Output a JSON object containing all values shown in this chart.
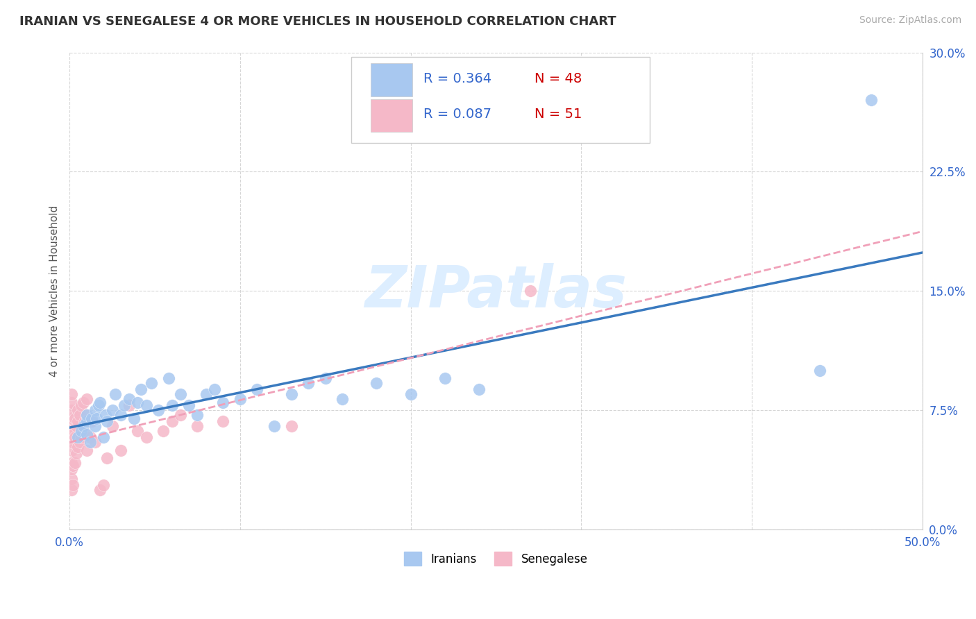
{
  "title": "IRANIAN VS SENEGALESE 4 OR MORE VEHICLES IN HOUSEHOLD CORRELATION CHART",
  "source": "Source: ZipAtlas.com",
  "ylabel": "4 or more Vehicles in Household",
  "xlim": [
    0.0,
    0.5
  ],
  "ylim": [
    0.0,
    0.3
  ],
  "xticks": [
    0.0,
    0.1,
    0.2,
    0.3,
    0.4,
    0.5
  ],
  "yticks": [
    0.0,
    0.075,
    0.15,
    0.225,
    0.3
  ],
  "xticklabels": [
    "0.0%",
    "",
    "",
    "",
    "",
    "50.0%"
  ],
  "yticklabels_right": [
    "0.0%",
    "7.5%",
    "15.0%",
    "22.5%",
    "30.0%"
  ],
  "iranians_R": 0.364,
  "iranians_N": 48,
  "senegalese_R": 0.087,
  "senegalese_N": 51,
  "iranian_color": "#a8c8f0",
  "senegalese_color": "#f5b8c8",
  "iranian_line_color": "#3a7abf",
  "senegalese_line_color": "#f0a0b8",
  "watermark_color": "#ddeeff",
  "iranians_x": [
    0.005,
    0.007,
    0.008,
    0.01,
    0.01,
    0.01,
    0.012,
    0.013,
    0.015,
    0.015,
    0.016,
    0.017,
    0.018,
    0.02,
    0.021,
    0.022,
    0.025,
    0.027,
    0.03,
    0.032,
    0.035,
    0.038,
    0.04,
    0.042,
    0.045,
    0.048,
    0.052,
    0.058,
    0.06,
    0.065,
    0.07,
    0.075,
    0.08,
    0.085,
    0.09,
    0.1,
    0.11,
    0.12,
    0.13,
    0.14,
    0.15,
    0.16,
    0.18,
    0.2,
    0.22,
    0.24,
    0.44,
    0.47
  ],
  "iranians_y": [
    0.058,
    0.062,
    0.065,
    0.06,
    0.068,
    0.072,
    0.055,
    0.07,
    0.065,
    0.075,
    0.07,
    0.078,
    0.08,
    0.058,
    0.072,
    0.068,
    0.075,
    0.085,
    0.072,
    0.078,
    0.082,
    0.07,
    0.08,
    0.088,
    0.078,
    0.092,
    0.075,
    0.095,
    0.078,
    0.085,
    0.078,
    0.072,
    0.085,
    0.088,
    0.08,
    0.082,
    0.088,
    0.065,
    0.085,
    0.092,
    0.095,
    0.082,
    0.092,
    0.085,
    0.095,
    0.088,
    0.1,
    0.27
  ],
  "senegalese_x": [
    0.001,
    0.001,
    0.001,
    0.001,
    0.001,
    0.001,
    0.001,
    0.001,
    0.001,
    0.001,
    0.001,
    0.001,
    0.002,
    0.002,
    0.002,
    0.003,
    0.003,
    0.003,
    0.004,
    0.004,
    0.005,
    0.005,
    0.005,
    0.006,
    0.006,
    0.007,
    0.007,
    0.008,
    0.008,
    0.009,
    0.01,
    0.01,
    0.01,
    0.012,
    0.013,
    0.015,
    0.018,
    0.02,
    0.022,
    0.025,
    0.03,
    0.035,
    0.04,
    0.045,
    0.055,
    0.06,
    0.065,
    0.075,
    0.09,
    0.13,
    0.27
  ],
  "senegalese_y": [
    0.025,
    0.032,
    0.038,
    0.042,
    0.05,
    0.055,
    0.06,
    0.065,
    0.07,
    0.075,
    0.08,
    0.085,
    0.028,
    0.04,
    0.06,
    0.042,
    0.058,
    0.07,
    0.048,
    0.065,
    0.052,
    0.068,
    0.075,
    0.055,
    0.072,
    0.058,
    0.078,
    0.062,
    0.08,
    0.068,
    0.05,
    0.072,
    0.082,
    0.058,
    0.068,
    0.055,
    0.025,
    0.028,
    0.045,
    0.065,
    0.05,
    0.078,
    0.062,
    0.058,
    0.062,
    0.068,
    0.072,
    0.065,
    0.068,
    0.065,
    0.15
  ],
  "legend_R_color": "#3366cc",
  "legend_N_color": "#cc0000",
  "background_color": "#ffffff",
  "grid_color": "#cccccc"
}
